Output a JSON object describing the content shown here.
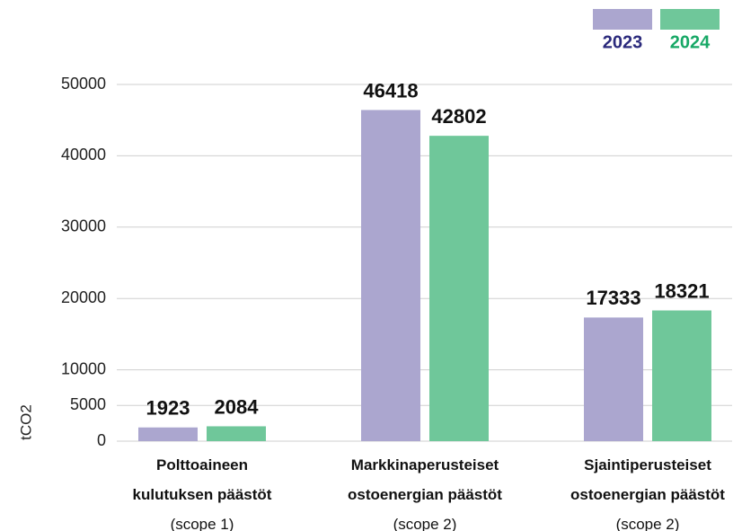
{
  "chart_data": {
    "type": "bar",
    "y_label": "tCO2",
    "categories": [
      [
        "Polttoaineen kulutuksen päästöt",
        "(scope 1)"
      ],
      [
        "Markkinaperusteiset ostoenergian päästöt",
        "(scope 2)"
      ],
      [
        "Sjaintiperusteiset ostoenergian päästöt",
        "(scope 2)"
      ]
    ],
    "series": [
      {
        "name": "2023",
        "color": "#aba6cf",
        "label_color": "#2b2a7c",
        "values": [
          1923,
          46418,
          17333
        ]
      },
      {
        "name": "2024",
        "color": "#6fc79a",
        "label_color": "#17a866",
        "values": [
          2084,
          42802,
          18321
        ]
      }
    ],
    "ylim": [
      0,
      50000
    ],
    "yticks": [
      0,
      5000,
      10000,
      20000,
      30000,
      40000,
      50000
    ],
    "grid": true
  }
}
